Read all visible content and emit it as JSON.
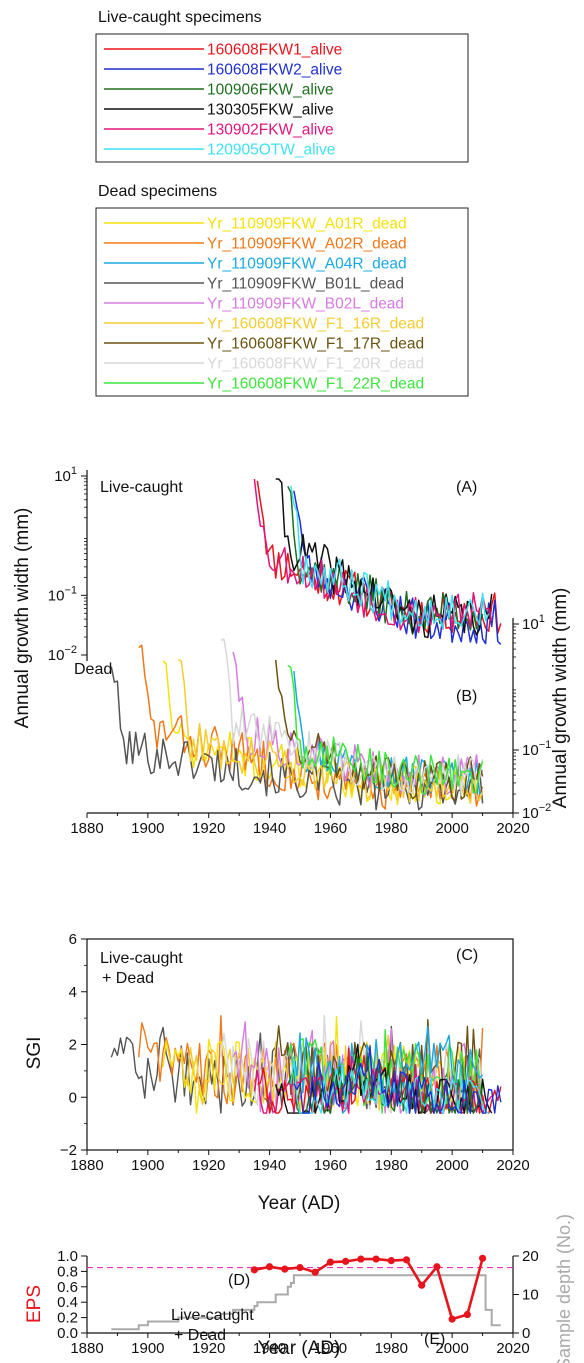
{
  "legends": {
    "live": {
      "title": "Live-caught specimens",
      "items": [
        {
          "label": "160608FKW1_alive",
          "color": "#e8141c"
        },
        {
          "label": "160608FKW2_alive",
          "color": "#1f2fd1"
        },
        {
          "label": "100906FKW_alive",
          "color": "#1e6e1e"
        },
        {
          "label": "130305FKW_alive",
          "color": "#111111"
        },
        {
          "label": "130902FKW_alive",
          "color": "#e0157a"
        },
        {
          "label": "120905OTW_alive",
          "color": "#3fe0f0"
        }
      ]
    },
    "dead": {
      "title": "Dead specimens",
      "items": [
        {
          "label": "Yr_110909FKW_A01R_dead",
          "color": "#f5e20a"
        },
        {
          "label": "Yr_110909FKW_A02R_dead",
          "color": "#f07818"
        },
        {
          "label": "Yr_110909FKW_A04R_dead",
          "color": "#1ba8e0"
        },
        {
          "label": "Yr_110909FKW_B01L_dead",
          "color": "#555555"
        },
        {
          "label": "Yr_110909FKW_B02L_dead",
          "color": "#d77be0"
        },
        {
          "label": "Yr_160608FKW_F1_16R_dead",
          "color": "#f5cc30"
        },
        {
          "label": "Yr_160608FKW_F1_17R_dead",
          "color": "#6b5210"
        },
        {
          "label": "Yr_160608FKW_F1_20R_dead",
          "color": "#d8d8d8"
        },
        {
          "label": "Yr_160608FKW_F1_22R_dead",
          "color": "#3ce63c"
        }
      ]
    }
  },
  "panels": {
    "A": {
      "letter": "(A)",
      "label": "Live-caught"
    },
    "B": {
      "letter": "(B)",
      "label": "Dead"
    },
    "C": {
      "letter": "(C)",
      "label_line1": "Live-caught",
      "label_line2": "+ Dead"
    },
    "D": {
      "letter": "(D)",
      "label_line1": "Live-caught",
      "label_line2": "+ Dead"
    },
    "E": {
      "letter": "(E)"
    }
  },
  "axes": {
    "growth_left_ylabel": "Annual growth width (mm)",
    "growth_right_ylabel": "Annual growth width (mm)",
    "left_ticks": [
      {
        "base": "10",
        "exp": "1"
      },
      {
        "base": "10",
        "exp": "−1"
      },
      {
        "base": "10",
        "exp": "−2"
      }
    ],
    "right_ticks": [
      {
        "base": "10",
        "exp": "1"
      },
      {
        "base": "10",
        "exp": "−1"
      },
      {
        "base": "10",
        "exp": "−2"
      }
    ],
    "sgi_ylabel": "SGI",
    "sgi_ticks": [
      "6",
      "4",
      "2",
      "0",
      "−2"
    ],
    "eps_ylabel": "EPS",
    "eps_ticks": [
      "1.0",
      "0.8",
      "0.6",
      "0.4",
      "0.2",
      "0.0"
    ],
    "depth_ylabel": "Sample depth (No.)",
    "depth_ticks": [
      "20",
      "10",
      "0"
    ],
    "x_ticks": [
      "1880",
      "1900",
      "1920",
      "1940",
      "1960",
      "1980",
      "2000",
      "2020"
    ],
    "xlabel": "Year (AD)"
  },
  "chart_data": [
    {
      "type": "line",
      "panel": "A",
      "scale": "log",
      "xlim": [
        1880,
        2020
      ],
      "ylim": [
        0.01,
        10
      ],
      "series": [
        {
          "name": "160608FKW1_alive",
          "color": "#e8141c",
          "start": 1936,
          "end": 2016,
          "v0": 0.5,
          "v1": 0.05,
          "noise": 0.7,
          "seed": 11
        },
        {
          "name": "160608FKW2_alive",
          "color": "#1f2fd1",
          "start": 1948,
          "end": 2016,
          "v0": 0.35,
          "v1": 0.035,
          "noise": 0.75,
          "seed": 23
        },
        {
          "name": "100906FKW_alive",
          "color": "#1e6e1e",
          "start": 1946,
          "end": 2010,
          "v0": 0.4,
          "v1": 0.05,
          "noise": 0.7,
          "seed": 37
        },
        {
          "name": "130305FKW_alive",
          "color": "#111111",
          "start": 1942,
          "end": 2013,
          "v0": 0.9,
          "v1": 0.045,
          "noise": 0.75,
          "seed": 41
        },
        {
          "name": "130902FKW_alive",
          "color": "#e0157a",
          "start": 1935,
          "end": 2013,
          "v0": 0.6,
          "v1": 0.05,
          "noise": 0.7,
          "seed": 53
        },
        {
          "name": "120905OTW_alive",
          "color": "#3fe0f0",
          "start": 1947,
          "end": 2012,
          "v0": 0.4,
          "v1": 0.06,
          "noise": 0.7,
          "seed": 67
        }
      ]
    },
    {
      "type": "line",
      "panel": "B",
      "scale": "log",
      "xlim": [
        1880,
        2020
      ],
      "ylim": [
        0.01,
        10
      ],
      "series": [
        {
          "name": "Yr_110909FKW_A01R_dead",
          "color": "#f5e20a",
          "start": 1905,
          "end": 2010,
          "v0": 0.15,
          "v1": 0.03,
          "noise": 0.7,
          "seed": 71
        },
        {
          "name": "Yr_110909FKW_A02R_dead",
          "color": "#f07818",
          "start": 1897,
          "end": 2010,
          "v0": 0.25,
          "v1": 0.025,
          "noise": 0.75,
          "seed": 83
        },
        {
          "name": "Yr_110909FKW_A04R_dead",
          "color": "#1ba8e0",
          "start": 1948,
          "end": 2010,
          "v0": 0.1,
          "v1": 0.04,
          "noise": 0.65,
          "seed": 97
        },
        {
          "name": "Yr_110909FKW_B01L_dead",
          "color": "#555555",
          "start": 1888,
          "end": 2010,
          "v0": 0.12,
          "v1": 0.025,
          "noise": 0.7,
          "seed": 101
        },
        {
          "name": "Yr_110909FKW_B02L_dead",
          "color": "#d77be0",
          "start": 1928,
          "end": 2010,
          "v0": 0.2,
          "v1": 0.04,
          "noise": 0.65,
          "seed": 113
        },
        {
          "name": "Yr_160608FKW_F1_16R_dead",
          "color": "#f5cc30",
          "start": 1910,
          "end": 2010,
          "v0": 0.15,
          "v1": 0.03,
          "noise": 0.65,
          "seed": 127
        },
        {
          "name": "Yr_160608FKW_F1_17R_dead",
          "color": "#6b5210",
          "start": 1942,
          "end": 2010,
          "v0": 0.15,
          "v1": 0.035,
          "noise": 0.7,
          "seed": 131
        },
        {
          "name": "Yr_160608FKW_F1_20R_dead",
          "color": "#d8d8d8",
          "start": 1924,
          "end": 2010,
          "v0": 0.3,
          "v1": 0.04,
          "noise": 0.65,
          "seed": 139
        },
        {
          "name": "Yr_160608FKW_F1_22R_dead",
          "color": "#3ce63c",
          "start": 1946,
          "end": 2010,
          "v0": 0.12,
          "v1": 0.04,
          "noise": 0.65,
          "seed": 149
        }
      ]
    },
    {
      "type": "line",
      "panel": "C",
      "scale": "linear",
      "xlim": [
        1880,
        2020
      ],
      "ylim": [
        -2,
        6
      ],
      "series": [
        {
          "name": "Yr_110909FKW_B01L_dead",
          "color": "#555555",
          "start": 1888,
          "end": 2010,
          "seed": 201
        },
        {
          "name": "Yr_110909FKW_A02R_dead",
          "color": "#f07818",
          "start": 1897,
          "end": 2010,
          "seed": 203
        },
        {
          "name": "Yr_110909FKW_A01R_dead",
          "color": "#f5e20a",
          "start": 1905,
          "end": 2010,
          "seed": 207
        },
        {
          "name": "Yr_160608FKW_F1_16R_dead",
          "color": "#f5cc30",
          "start": 1910,
          "end": 2010,
          "seed": 211
        },
        {
          "name": "Yr_160608FKW_F1_20R_dead",
          "color": "#d8d8d8",
          "start": 1924,
          "end": 2010,
          "seed": 213
        },
        {
          "name": "Yr_110909FKW_B02L_dead",
          "color": "#d77be0",
          "start": 1928,
          "end": 2010,
          "seed": 217
        },
        {
          "name": "Yr_160608FKW_F1_17R_dead",
          "color": "#6b5210",
          "start": 1942,
          "end": 2010,
          "seed": 219
        },
        {
          "name": "Yr_160608FKW_F1_22R_dead",
          "color": "#3ce63c",
          "start": 1946,
          "end": 2010,
          "seed": 223
        },
        {
          "name": "Yr_110909FKW_A04R_dead",
          "color": "#1ba8e0",
          "start": 1948,
          "end": 2010,
          "seed": 227
        },
        {
          "name": "130902FKW_alive",
          "color": "#e0157a",
          "start": 1935,
          "end": 2013,
          "seed": 229
        },
        {
          "name": "160608FKW1_alive",
          "color": "#e8141c",
          "start": 1936,
          "end": 2016,
          "seed": 233
        },
        {
          "name": "130305FKW_alive",
          "color": "#111111",
          "start": 1942,
          "end": 2013,
          "seed": 237
        },
        {
          "name": "100906FKW_alive",
          "color": "#1e6e1e",
          "start": 1946,
          "end": 2010,
          "seed": 239
        },
        {
          "name": "120905OTW_alive",
          "color": "#3fe0f0",
          "start": 1947,
          "end": 2012,
          "seed": 241
        },
        {
          "name": "160608FKW2_alive",
          "color": "#1f2fd1",
          "start": 1948,
          "end": 2016,
          "seed": 243
        }
      ]
    },
    {
      "type": "line",
      "panel": "D",
      "xlim": [
        1880,
        2020
      ],
      "ylim": [
        0,
        1
      ],
      "threshold": 0.85,
      "eps": {
        "x": [
          1935,
          1940,
          1945,
          1950,
          1955,
          1960,
          1965,
          1970,
          1975,
          1980,
          1985,
          1990,
          1995,
          2000,
          2005,
          2010
        ],
        "y": [
          0.82,
          0.86,
          0.83,
          0.85,
          0.79,
          0.92,
          0.93,
          0.96,
          0.96,
          0.94,
          0.95,
          0.62,
          0.86,
          0.18,
          0.24,
          0.97
        ]
      },
      "depth": {
        "ylim": [
          0,
          20
        ],
        "x": [
          1888,
          1897,
          1900,
          1905,
          1910,
          1924,
          1928,
          1935,
          1936,
          1942,
          1946,
          1947,
          1948,
          2010,
          2011,
          2013,
          2016
        ],
        "y": [
          1,
          2,
          3,
          3,
          4,
          5,
          6,
          7,
          8,
          10,
          12,
          13,
          15,
          15,
          6,
          2,
          2
        ]
      }
    }
  ]
}
